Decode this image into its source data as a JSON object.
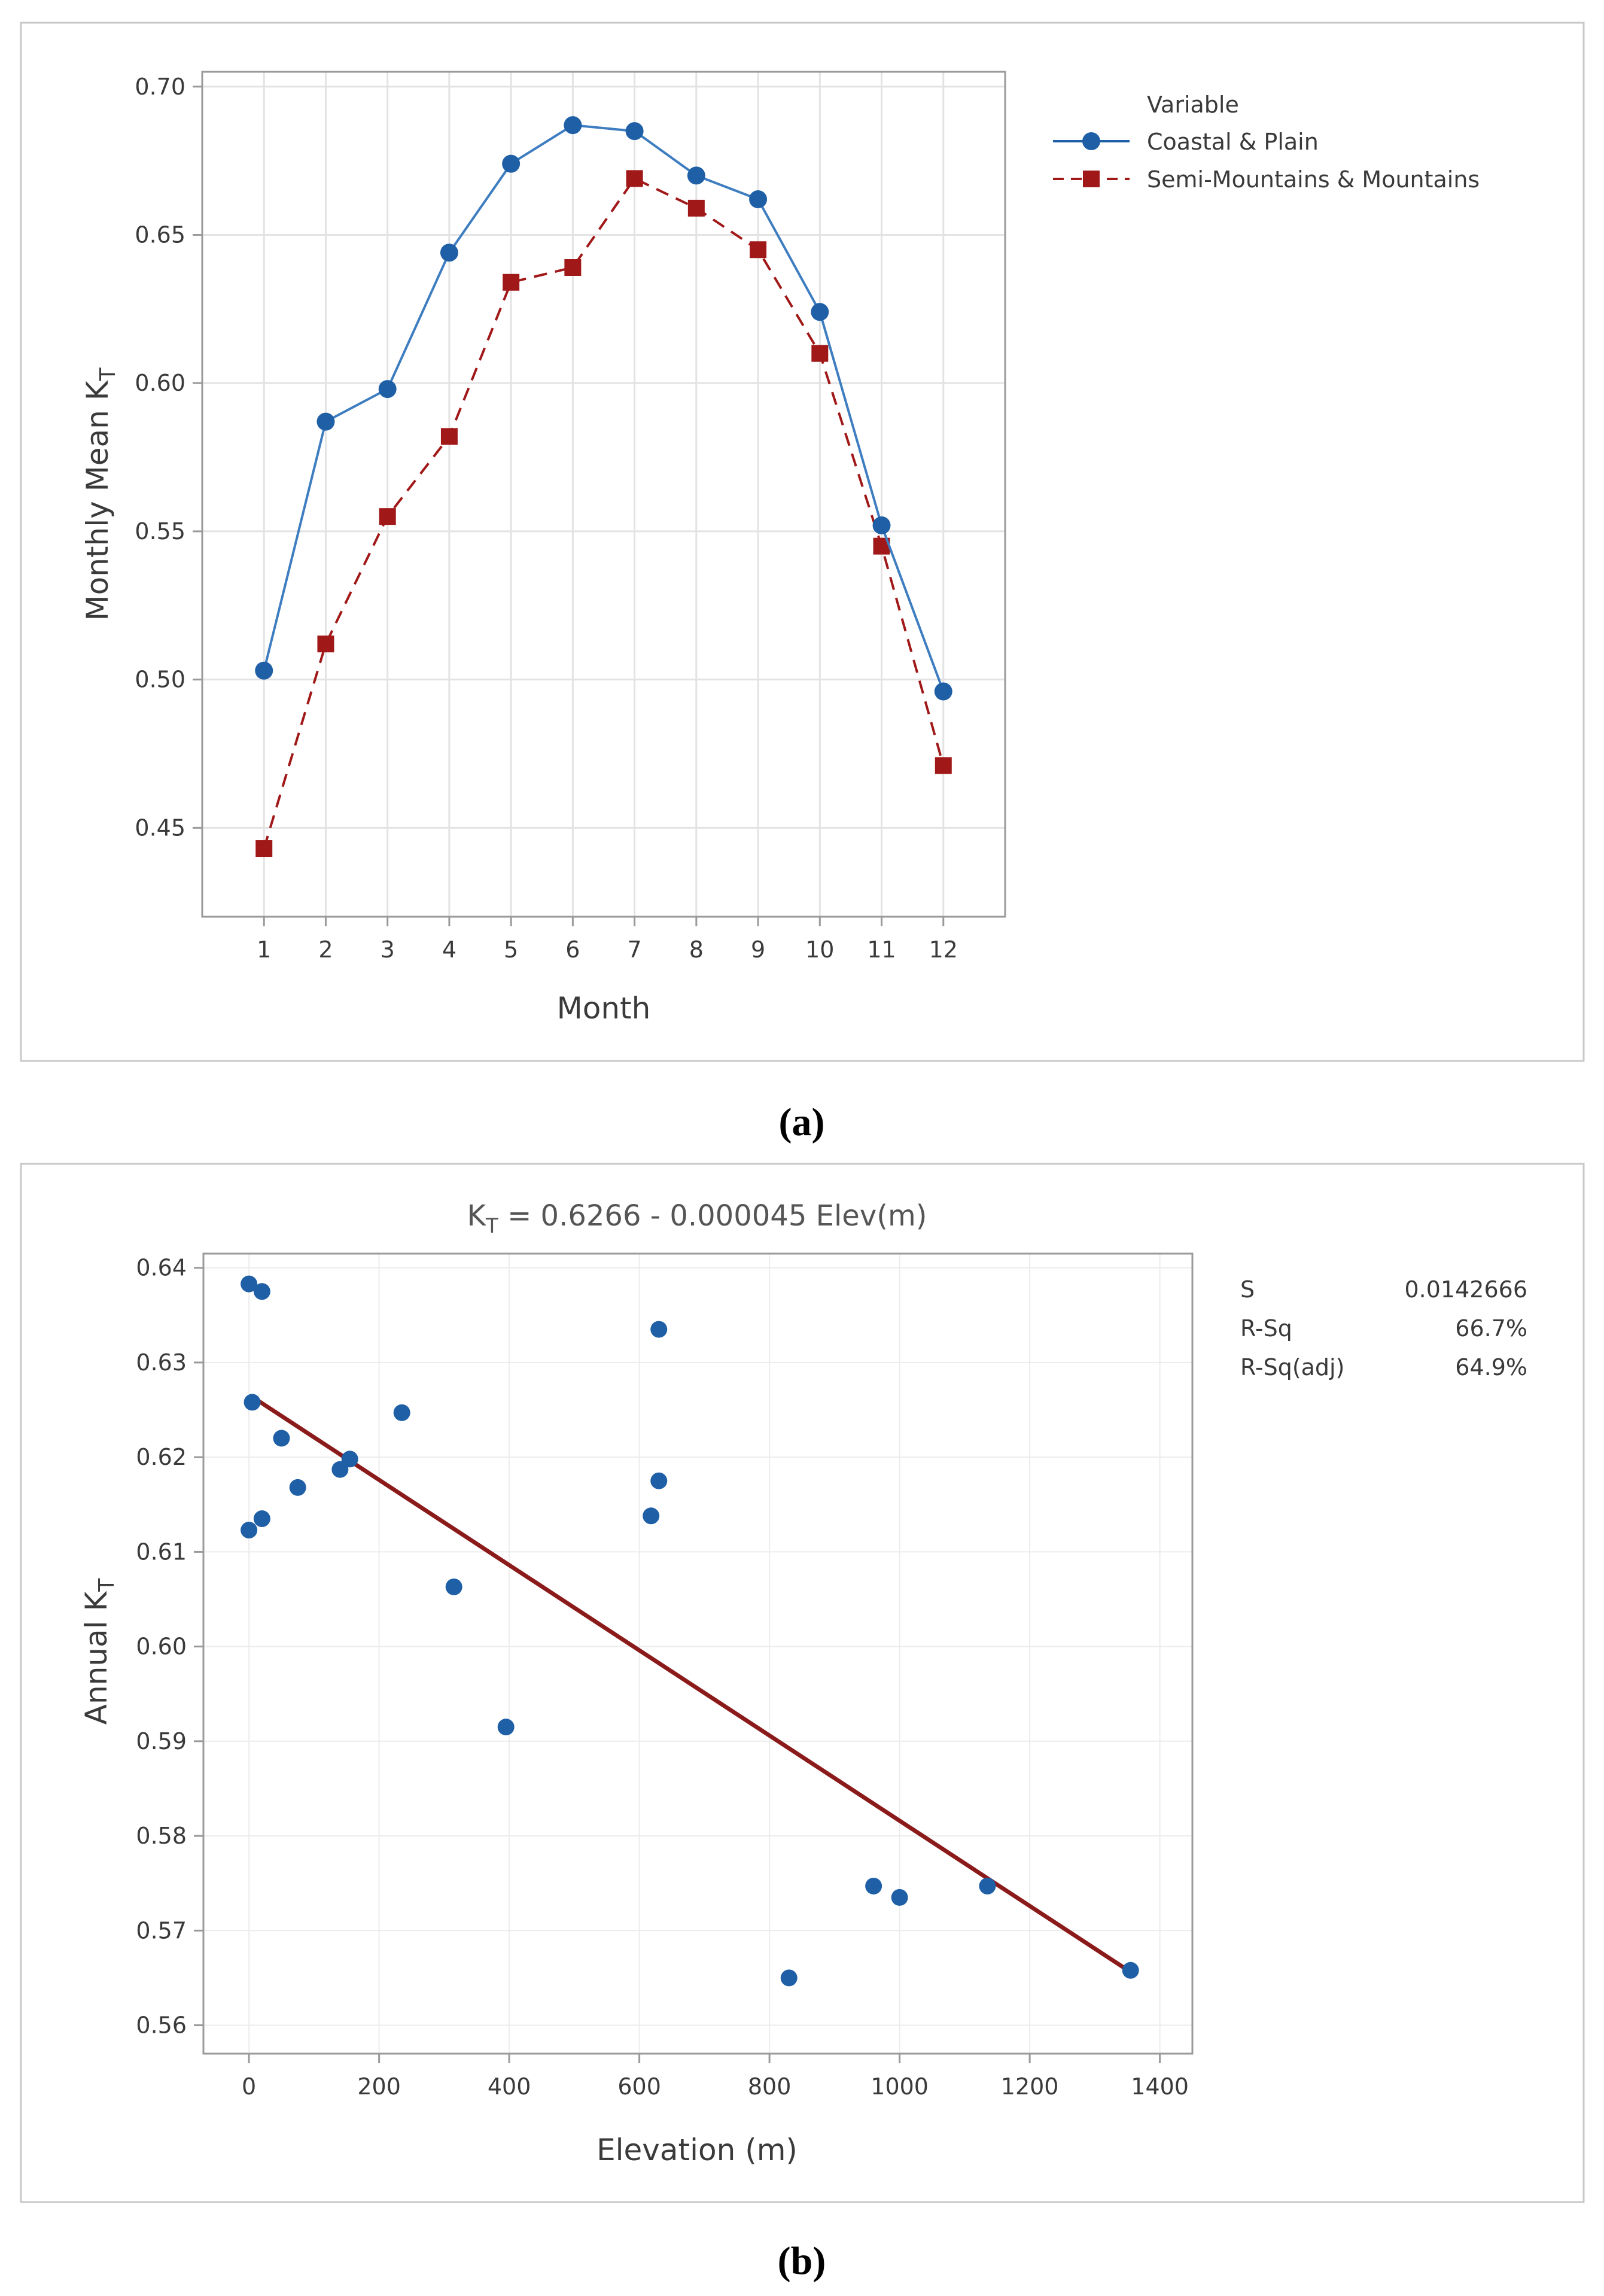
{
  "colors": {
    "series1": "#1f5fa6",
    "series2": "#a01818",
    "fit_line": "#8b1a1a",
    "grid": "#e3e3e3",
    "frame": "#c8c8c8",
    "text": "#3a3a3a"
  },
  "chart_data": [
    {
      "type": "line",
      "caption": "(a)",
      "xlabel": "Month",
      "ylabel_main": "Monthly Mean K",
      "ylabel_sub": "T",
      "xlim": [
        0,
        13
      ],
      "ylim": [
        0.42,
        0.705
      ],
      "x": [
        1,
        2,
        3,
        4,
        5,
        6,
        7,
        8,
        9,
        10,
        11,
        12
      ],
      "x_ticks": [
        "1",
        "2",
        "3",
        "4",
        "5",
        "6",
        "7",
        "8",
        "9",
        "10",
        "11",
        "12"
      ],
      "y_ticks": [
        0.45,
        0.5,
        0.55,
        0.6,
        0.65,
        0.7
      ],
      "y_tick_labels": [
        "0.45",
        "0.50",
        "0.55",
        "0.60",
        "0.65",
        "0.70"
      ],
      "legend": {
        "title": "Variable"
      },
      "series": [
        {
          "name": "Coastal & Plain",
          "marker": "circle",
          "style": "solid",
          "values": [
            0.503,
            0.587,
            0.598,
            0.644,
            0.674,
            0.687,
            0.685,
            0.67,
            0.662,
            0.624,
            0.552,
            0.496
          ]
        },
        {
          "name": "Semi-Mountains & Mountains",
          "marker": "square",
          "style": "dashed",
          "values": [
            0.443,
            0.512,
            0.555,
            0.582,
            0.634,
            0.639,
            0.669,
            0.659,
            0.645,
            0.61,
            0.545,
            0.471
          ]
        }
      ]
    },
    {
      "type": "scatter",
      "caption": "(b)",
      "title_main": "K",
      "title_sub": "T",
      "title_rest": " = 0.6266 - 0.000045 Elev(m)",
      "xlabel": "Elevation (m)",
      "ylabel_main": "Annual K",
      "ylabel_sub": "T",
      "xlim": [
        -70,
        1450
      ],
      "ylim": [
        0.557,
        0.6415
      ],
      "x_ticks": [
        0,
        200,
        400,
        600,
        800,
        1000,
        1200,
        1400
      ],
      "x_tick_labels": [
        "0",
        "200",
        "400",
        "600",
        "800",
        "1000",
        "1200",
        "1400"
      ],
      "y_ticks": [
        0.56,
        0.57,
        0.58,
        0.59,
        0.6,
        0.61,
        0.62,
        0.63,
        0.64
      ],
      "y_tick_labels": [
        "0.56",
        "0.57",
        "0.58",
        "0.59",
        "0.60",
        "0.61",
        "0.62",
        "0.63",
        "0.64"
      ],
      "points": [
        [
          0,
          0.6383
        ],
        [
          20,
          0.6375
        ],
        [
          5,
          0.6258
        ],
        [
          50,
          0.622
        ],
        [
          75,
          0.6168
        ],
        [
          140,
          0.6187
        ],
        [
          155,
          0.6198
        ],
        [
          235,
          0.6247
        ],
        [
          20,
          0.6135
        ],
        [
          0,
          0.6123
        ],
        [
          315,
          0.6063
        ],
        [
          395,
          0.5915
        ],
        [
          630,
          0.6335
        ],
        [
          630,
          0.6175
        ],
        [
          618,
          0.6138
        ],
        [
          830,
          0.565
        ],
        [
          960,
          0.5747
        ],
        [
          1000,
          0.5735
        ],
        [
          1135,
          0.5747
        ],
        [
          1355,
          0.5658
        ]
      ],
      "fit": {
        "intercept": 0.6266,
        "slope": -4.5e-05,
        "x_range": [
          10,
          1355
        ]
      },
      "stats": [
        {
          "label": "S",
          "value": "0.0142666"
        },
        {
          "label": "R-Sq",
          "value": "66.7%"
        },
        {
          "label": "R-Sq(adj)",
          "value": "64.9%"
        }
      ]
    }
  ]
}
